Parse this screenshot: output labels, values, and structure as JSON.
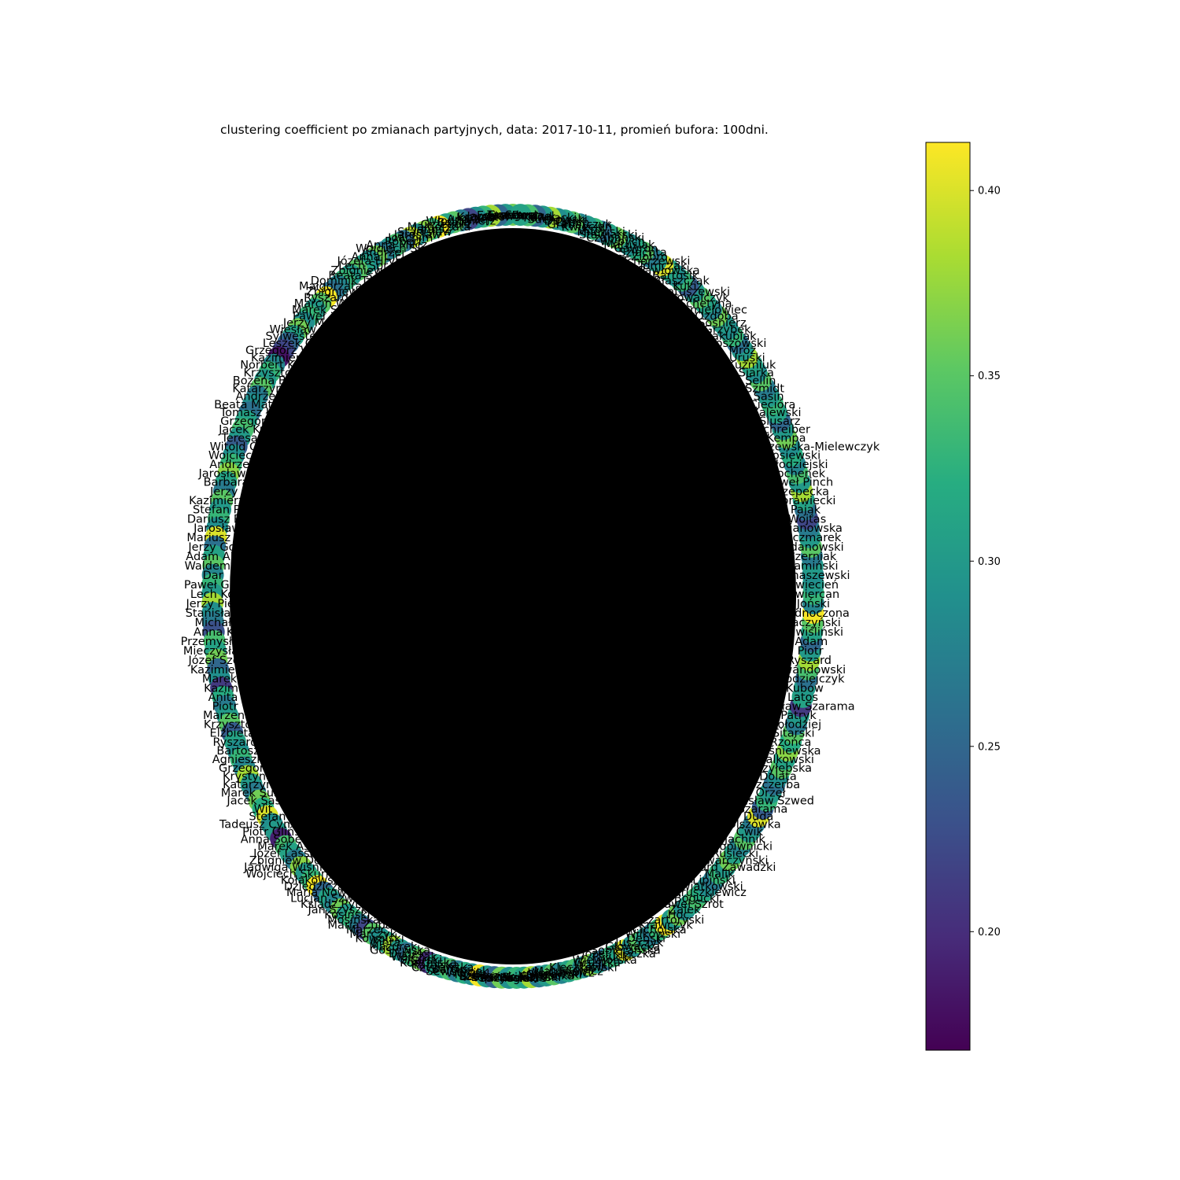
{
  "chart_data": {
    "type": "network",
    "title": "clustering coefficient po zmianach partyjnych, data: 2017-10-11, promień bufora: 100dni.",
    "layout": "circular",
    "colormap": "viridis",
    "colorbar": {
      "range": [
        0.168,
        0.413
      ],
      "ticks": [
        0.2,
        0.25,
        0.3,
        0.35,
        0.4
      ],
      "tick_labels": [
        "0.20",
        "0.25",
        "0.30",
        "0.35",
        "0.40"
      ]
    },
    "edge_color": "#000000",
    "nodes": [
      {
        "label": "Grzegorz",
        "value": 0.36
      },
      {
        "label": "Teresa",
        "value": 0.3
      },
      {
        "label": "Edward",
        "value": 0.25
      },
      {
        "label": "Jarosław",
        "value": 0.38
      },
      {
        "label": "Krzysztof",
        "value": 0.33
      },
      {
        "label": "Joanna",
        "value": 0.29
      },
      {
        "label": "Andrzej",
        "value": 0.22
      },
      {
        "label": "Włodzimierz",
        "value": 0.27
      },
      {
        "label": "Beata",
        "value": 0.35
      },
      {
        "label": "Grzegorz",
        "value": 0.31
      },
      {
        "label": "Małgorzata",
        "value": 0.41
      },
      {
        "label": "Janusz",
        "value": 0.33
      },
      {
        "label": "Stanisław",
        "value": 0.37
      },
      {
        "label": "Jarosław",
        "value": 0.29
      },
      {
        "label": "Joachim",
        "value": 0.39
      },
      {
        "label": "Robert",
        "value": 0.26
      },
      {
        "label": "Anna Milcz",
        "value": 0.34
      },
      {
        "label": "Wojciech Sk",
        "value": 0.3
      },
      {
        "label": "Andrzej",
        "value": 0.27
      },
      {
        "label": "Anna Cic",
        "value": 0.36
      },
      {
        "label": "Józefa Hryn",
        "value": 0.29
      },
      {
        "label": "Lech Spr",
        "value": 0.31
      },
      {
        "label": "Zbigniew",
        "value": 0.35
      },
      {
        "label": "Beata S",
        "value": 0.3
      },
      {
        "label": "Dominik Tar",
        "value": 0.33
      },
      {
        "label": "Małgorzata W",
        "value": 0.28
      },
      {
        "label": "Zbigniew",
        "value": 0.26
      },
      {
        "label": "Ryszard",
        "value": 0.41
      },
      {
        "label": "Marcin W",
        "value": 0.35
      },
      {
        "label": "Marek S",
        "value": 0.3
      },
      {
        "label": "Paweł",
        "value": 0.33
      },
      {
        "label": "Jerzy M",
        "value": 0.29
      },
      {
        "label": "Wiesław K",
        "value": 0.36
      },
      {
        "label": "Sylwester",
        "value": 0.31
      },
      {
        "label": "Leszek G",
        "value": 0.25
      },
      {
        "label": "Grzegorz Woj",
        "value": 0.22
      },
      {
        "label": "Kazimierz",
        "value": 0.18
      },
      {
        "label": "Norbert Kac",
        "value": 0.28
      },
      {
        "label": "Krzysztof",
        "value": 0.33
      },
      {
        "label": "Bożena Bor",
        "value": 0.3
      },
      {
        "label": "Katarzyna",
        "value": 0.35
      },
      {
        "label": "Andrzej",
        "value": 0.27
      },
      {
        "label": "Beata Mateus",
        "value": 0.29
      },
      {
        "label": "Tomasz Ła",
        "value": 0.26
      },
      {
        "label": "Grzegorz",
        "value": 0.31
      },
      {
        "label": "Jacek Ku",
        "value": 0.34
      },
      {
        "label": "Teresa",
        "value": 0.3
      },
      {
        "label": "Witold Cz",
        "value": 0.24
      },
      {
        "label": "Wojciech",
        "value": 0.29
      },
      {
        "label": "Andrzej",
        "value": 0.33
      },
      {
        "label": "Jarosław G",
        "value": 0.37
      },
      {
        "label": "Barbara",
        "value": 0.31
      },
      {
        "label": "Jerzy",
        "value": 0.27
      },
      {
        "label": "Kazimierz S",
        "value": 0.35
      },
      {
        "label": "Stefan Ro",
        "value": 0.3
      },
      {
        "label": "Dariusz Pio",
        "value": 0.33
      },
      {
        "label": "Jarosław",
        "value": 0.29
      },
      {
        "label": "Mariusz Bł",
        "value": 0.4
      },
      {
        "label": "Jerzy Gos",
        "value": 0.26
      },
      {
        "label": "Adam Abr",
        "value": 0.31
      },
      {
        "label": "Waldemar",
        "value": 0.35
      },
      {
        "label": "Dar",
        "value": 0.28
      },
      {
        "label": "Paweł Gra",
        "value": 0.33
      },
      {
        "label": "Lech Ko",
        "value": 0.3
      },
      {
        "label": "Jerzy Pier",
        "value": 0.38
      },
      {
        "label": "Stanisław",
        "value": 0.29
      },
      {
        "label": "Michał",
        "value": 0.27
      },
      {
        "label": "Anna K",
        "value": 0.23
      },
      {
        "label": "Przemysław",
        "value": 0.34
      },
      {
        "label": "Mieczysław",
        "value": 0.31
      },
      {
        "label": "Józef Szcz",
        "value": 0.36
      },
      {
        "label": "Kazimierz",
        "value": 0.25
      },
      {
        "label": "Marek",
        "value": 0.29
      },
      {
        "label": "Kazim",
        "value": 0.21
      },
      {
        "label": "Anita",
        "value": 0.32
      },
      {
        "label": "Piotr",
        "value": 0.27
      },
      {
        "label": "Marzena",
        "value": 0.3
      },
      {
        "label": "Krzysztof",
        "value": 0.35
      },
      {
        "label": "Elżbieta",
        "value": 0.24
      },
      {
        "label": "Ryszard",
        "value": 0.31
      },
      {
        "label": "Bartosz",
        "value": 0.29
      },
      {
        "label": "Agnieszka",
        "value": 0.33
      },
      {
        "label": "Grzegorz",
        "value": 0.28
      },
      {
        "label": "Krystyna",
        "value": 0.38
      },
      {
        "label": "Katarzyna",
        "value": 0.3
      },
      {
        "label": "Marek Suski",
        "value": 0.27
      },
      {
        "label": "Jacek Sasin",
        "value": 0.36
      },
      {
        "label": "Wit",
        "value": 0.32
      },
      {
        "label": "Stefan",
        "value": 0.4
      },
      {
        "label": "Tadeusz Cymański",
        "value": 0.29
      },
      {
        "label": "Piotr Gliński",
        "value": 0.3
      },
      {
        "label": "Anna Sobecka",
        "value": 0.19
      },
      {
        "label": "Marek Ast",
        "value": 0.34
      },
      {
        "label": "Józef Lassota",
        "value": 0.31
      },
      {
        "label": "Zbigniew Dolata",
        "value": 0.27
      },
      {
        "label": "Jadwiga Wiśniewska",
        "value": 0.37
      },
      {
        "label": "Wojciech Skurkiewicz",
        "value": 0.3
      },
      {
        "label": "Kołakowski",
        "value": 0.33
      },
      {
        "label": "Dziedziczak",
        "value": 0.41
      },
      {
        "label": "Maria Nowak",
        "value": 0.25
      },
      {
        "label": "Lucjan Szwed",
        "value": 0.31
      },
      {
        "label": "Ksiądz Rytel",
        "value": 0.28
      },
      {
        "label": "Jan Szyszko",
        "value": 0.36
      },
      {
        "label": "Kosiński",
        "value": 0.3
      },
      {
        "label": "Mosińska",
        "value": 0.33
      },
      {
        "label": "Maria Zuba",
        "value": 0.27
      },
      {
        "label": "Marzec",
        "value": 0.22
      },
      {
        "label": "Marczyk",
        "value": 0.35
      },
      {
        "label": "Kowalski",
        "value": 0.29
      },
      {
        "label": "Pięta",
        "value": 0.31
      },
      {
        "label": "Mazurek",
        "value": 0.38
      },
      {
        "label": "Gosiewska",
        "value": 0.3
      },
      {
        "label": "Dudek",
        "value": 0.26
      },
      {
        "label": "Walczak",
        "value": 0.33
      },
      {
        "label": "Sitarski",
        "value": 0.36
      },
      {
        "label": "Kopcińska",
        "value": 0.2
      },
      {
        "label": "Rafalska",
        "value": 0.31
      },
      {
        "label": "Czyżewska",
        "value": 0.3
      },
      {
        "label": "Bartuś",
        "value": 0.34
      },
      {
        "label": "Sewerynek",
        "value": 0.27
      },
      {
        "label": "Wójcik",
        "value": 0.32
      },
      {
        "label": "Nykiel",
        "value": 0.29
      },
      {
        "label": "Szeliga",
        "value": 0.41
      },
      {
        "label": "Szewczak",
        "value": 0.3
      },
      {
        "label": "Łopiński",
        "value": 0.25
      },
      {
        "label": "Paszyński",
        "value": 0.36
      },
      {
        "label": "Suchowski",
        "value": 0.29
      },
      {
        "label": "Fogiel",
        "value": 0.33
      },
      {
        "label": "Kuźniak",
        "value": 0.31
      },
      {
        "label": "Brudziński",
        "value": 0.38
      },
      {
        "label": "Szydło",
        "value": 0.27
      },
      {
        "label": "Wargocka",
        "value": 0.3
      },
      {
        "label": "Olszewski",
        "value": 0.35
      },
      {
        "label": "Wojtkiewicz",
        "value": 0.28
      },
      {
        "label": "Matusiewicz",
        "value": 0.31
      },
      {
        "label": "Jurgiel",
        "value": 0.34
      },
      {
        "label": "Kleczkowski",
        "value": 0.29
      },
      {
        "label": "Wąsik",
        "value": 0.37
      },
      {
        "label": "Gruszka",
        "value": 0.3
      },
      {
        "label": "Wiewiórska",
        "value": 0.26
      },
      {
        "label": "Pałucki",
        "value": 0.33
      },
      {
        "label": "Józef Kleczka",
        "value": 0.31
      },
      {
        "label": "Sobierańska",
        "value": 0.4
      },
      {
        "label": "Głowacka",
        "value": 0.29
      },
      {
        "label": "Juszczyk",
        "value": 0.35
      },
      {
        "label": "Dębski",
        "value": 0.3
      },
      {
        "label": "Wilkowski",
        "value": 0.27
      },
      {
        "label": "Cicholska",
        "value": 0.33
      },
      {
        "label": "Krawczyk",
        "value": 0.41
      },
      {
        "label": "Czartoryski",
        "value": 0.3
      },
      {
        "label": "Hoc",
        "value": 0.36
      },
      {
        "label": "Żalek",
        "value": 0.29
      },
      {
        "label": "Paweł Szrot",
        "value": 0.31
      },
      {
        "label": "Bogucki",
        "value": 0.34
      },
      {
        "label": "Andruszkiewicz",
        "value": 0.32
      },
      {
        "label": "Kwiatkowski",
        "value": 0.29
      },
      {
        "label": "Lipiński",
        "value": 0.27
      },
      {
        "label": "Malik",
        "value": 0.33
      },
      {
        "label": "Ryszard Zawadzki",
        "value": 0.3
      },
      {
        "label": "Skwarczyński",
        "value": 0.36
      },
      {
        "label": "Rusiecki",
        "value": 0.31
      },
      {
        "label": "Kropiwnicki",
        "value": 0.28
      },
      {
        "label": "Jachnik",
        "value": 0.35
      },
      {
        "label": "Ćwik",
        "value": 0.3
      },
      {
        "label": "Olszówka",
        "value": 0.27
      },
      {
        "label": "Duda",
        "value": 0.4
      },
      {
        "label": "Szarama",
        "value": 0.24
      },
      {
        "label": "Stanisław Szwed",
        "value": 0.33
      },
      {
        "label": "Orzeł",
        "value": 0.3
      },
      {
        "label": "Szczerba",
        "value": 0.26
      },
      {
        "label": "Dolata",
        "value": 0.29
      },
      {
        "label": "Przyłębska",
        "value": 0.35
      },
      {
        "label": "Walkowski",
        "value": 0.31
      },
      {
        "label": "Wiśniewska",
        "value": 0.37
      },
      {
        "label": "Rzońca",
        "value": 0.32
      },
      {
        "label": "Sitarski",
        "value": 0.35
      },
      {
        "label": "Kołodziej",
        "value": 0.27
      },
      {
        "label": "Patryk",
        "value": 0.3
      },
      {
        "label": "Stanisław Szarama",
        "value": 0.21
      },
      {
        "label": "Latos",
        "value": 0.31
      },
      {
        "label": "Kubów",
        "value": 0.3
      },
      {
        "label": "Kołodziejczyk",
        "value": 0.26
      },
      {
        "label": "Lewandowski",
        "value": 0.34
      },
      {
        "label": "Ryszard",
        "value": 0.38
      },
      {
        "label": "Piotr",
        "value": 0.3
      },
      {
        "label": "Adam",
        "value": 0.25
      },
      {
        "label": "Zawiśliński",
        "value": 0.31
      },
      {
        "label": "Kaczyński",
        "value": 0.35
      },
      {
        "label": "Zjednoczona",
        "value": 0.41
      },
      {
        "label": "Joński",
        "value": 0.28
      },
      {
        "label": "Zwiercan",
        "value": 0.33
      },
      {
        "label": "Kwiecień",
        "value": 0.3
      },
      {
        "label": "Tomaszewski",
        "value": 0.29
      },
      {
        "label": "Kamiński",
        "value": 0.3
      },
      {
        "label": "Czerniak",
        "value": 0.27
      },
      {
        "label": "Ardanowski",
        "value": 0.35
      },
      {
        "label": "Kaczmarek",
        "value": 0.3
      },
      {
        "label": "Bojanowska",
        "value": 0.27
      },
      {
        "label": "Wojtas",
        "value": 0.22
      },
      {
        "label": "Pająk",
        "value": 0.26
      },
      {
        "label": "Morawiecki",
        "value": 0.31
      },
      {
        "label": "Rzepecka",
        "value": 0.38
      },
      {
        "label": "Paweł Pinch",
        "value": 0.3
      },
      {
        "label": "Bochenek",
        "value": 0.34
      },
      {
        "label": "Kołodziejski",
        "value": 0.28
      },
      {
        "label": "Gosiewski",
        "value": 0.32
      },
      {
        "label": "Dorota Arciszewska-Mielewczyk",
        "value": 0.29
      },
      {
        "label": "Kempa",
        "value": 0.36
      },
      {
        "label": "Schreiber",
        "value": 0.3
      },
      {
        "label": "Ślusarz",
        "value": 0.25
      },
      {
        "label": "Zalewski",
        "value": 0.31
      },
      {
        "label": "Ciecióra",
        "value": 0.33
      },
      {
        "label": "Sasin",
        "value": 0.3
      },
      {
        "label": "Szmidt",
        "value": 0.27
      },
      {
        "label": "Sellin",
        "value": 0.35
      },
      {
        "label": "Siarka",
        "value": 0.29
      },
      {
        "label": "Kuźmiuk",
        "value": 0.31
      },
      {
        "label": "Uruski",
        "value": 0.38
      },
      {
        "label": "Mróz",
        "value": 0.3
      },
      {
        "label": "Koszowski",
        "value": 0.26
      },
      {
        "label": "Jakubiak",
        "value": 0.33
      },
      {
        "label": "Grzybek",
        "value": 0.29
      },
      {
        "label": "Sośnierz",
        "value": 0.3
      },
      {
        "label": "Ozdoba",
        "value": 0.36
      },
      {
        "label": "Chmielowiec",
        "value": 0.28
      },
      {
        "label": "Schetyna",
        "value": 0.31
      },
      {
        "label": "Kowalczyk",
        "value": 0.35
      },
      {
        "label": "Matuszewski",
        "value": 0.3
      },
      {
        "label": "Kukiz",
        "value": 0.24
      },
      {
        "label": "Błaszczak",
        "value": 0.33
      },
      {
        "label": "Bartosik",
        "value": 0.29
      },
      {
        "label": "Pawłowska",
        "value": 0.31
      },
      {
        "label": "Tomczak",
        "value": 0.4
      },
      {
        "label": "Tchórzewski",
        "value": 0.3
      },
      {
        "label": "Ziobro",
        "value": 0.27
      },
      {
        "label": "Szlachta",
        "value": 0.35
      },
      {
        "label": "Gawron",
        "value": 0.32
      },
      {
        "label": "Matusiak",
        "value": 0.29
      },
      {
        "label": "Wypych",
        "value": 0.3
      },
      {
        "label": "Czabański",
        "value": 0.36
      },
      {
        "label": "Stawiarski",
        "value": 0.31
      },
      {
        "label": "Milewski",
        "value": 0.26
      },
      {
        "label": "Król",
        "value": 0.33
      },
      {
        "label": "Kwiecień",
        "value": 0.3
      },
      {
        "label": "Grabarczyk",
        "value": 0.28
      },
      {
        "label": "Czech",
        "value": 0.35
      },
      {
        "label": "Duszek",
        "value": 0.31
      },
      {
        "label": "Suchowski",
        "value": 0.29
      },
      {
        "label": "Kownacki",
        "value": 0.38
      },
      {
        "label": "Kruk",
        "value": 0.3
      },
      {
        "label": "Andzel",
        "value": 0.25
      },
      {
        "label": "Parda",
        "value": 0.34
      },
      {
        "label": "Sowa",
        "value": 0.31
      }
    ]
  }
}
